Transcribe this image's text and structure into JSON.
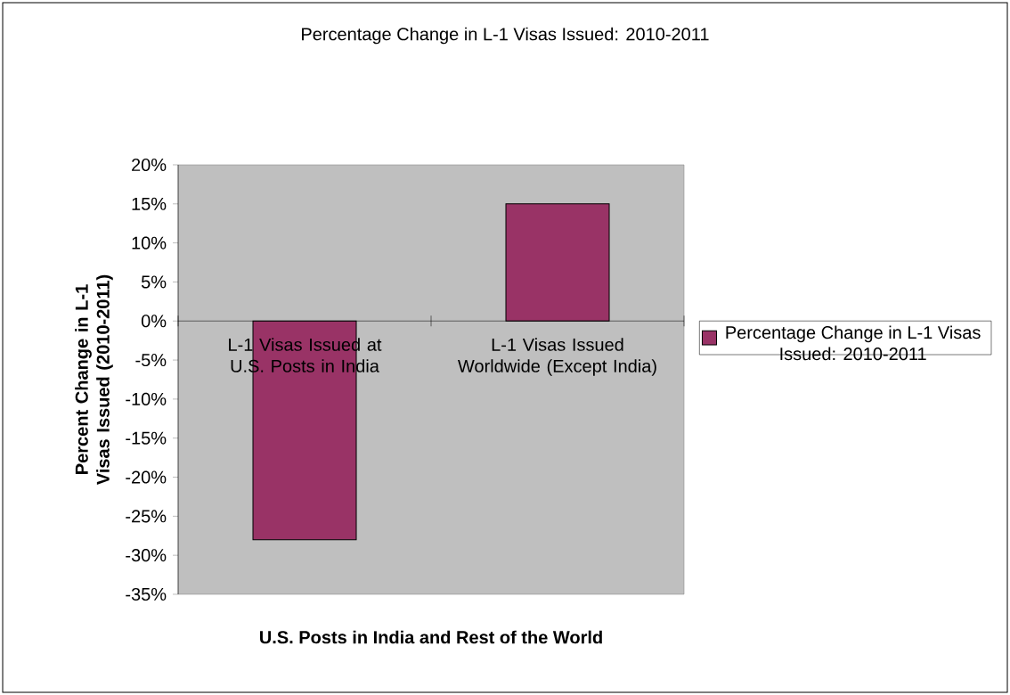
{
  "chart_data": {
    "type": "bar",
    "title": "Percentage Change in L-1 Visas Issued: 2010-2011",
    "xlabel": "U.S. Posts in India and Rest of the World",
    "ylabel": "Percent Change in L-1 Visas Issued (2010-2011)",
    "categories": [
      "L-1 Visas Issued at U.S. Posts in India",
      "L-1 Visas Issued Worldwide (Except India)"
    ],
    "series": [
      {
        "name": "Percentage Change in L-1 Visas Issued: 2010-2011",
        "color": "#993366",
        "values": [
          -28,
          15
        ]
      }
    ],
    "ylim": [
      -35,
      20
    ],
    "yticks": [
      {
        "value": -35,
        "label": "-35%"
      },
      {
        "value": -30,
        "label": "-30%"
      },
      {
        "value": -25,
        "label": "-25%"
      },
      {
        "value": -20,
        "label": "-20%"
      },
      {
        "value": -15,
        "label": "-15%"
      },
      {
        "value": -10,
        "label": "-10%"
      },
      {
        "value": -5,
        "label": "-5%"
      },
      {
        "value": 0,
        "label": "0%"
      },
      {
        "value": 5,
        "label": "5%"
      },
      {
        "value": 10,
        "label": "10%"
      },
      {
        "value": 15,
        "label": "15%"
      },
      {
        "value": 20,
        "label": "20%"
      }
    ],
    "grid": false,
    "legend": "right"
  }
}
